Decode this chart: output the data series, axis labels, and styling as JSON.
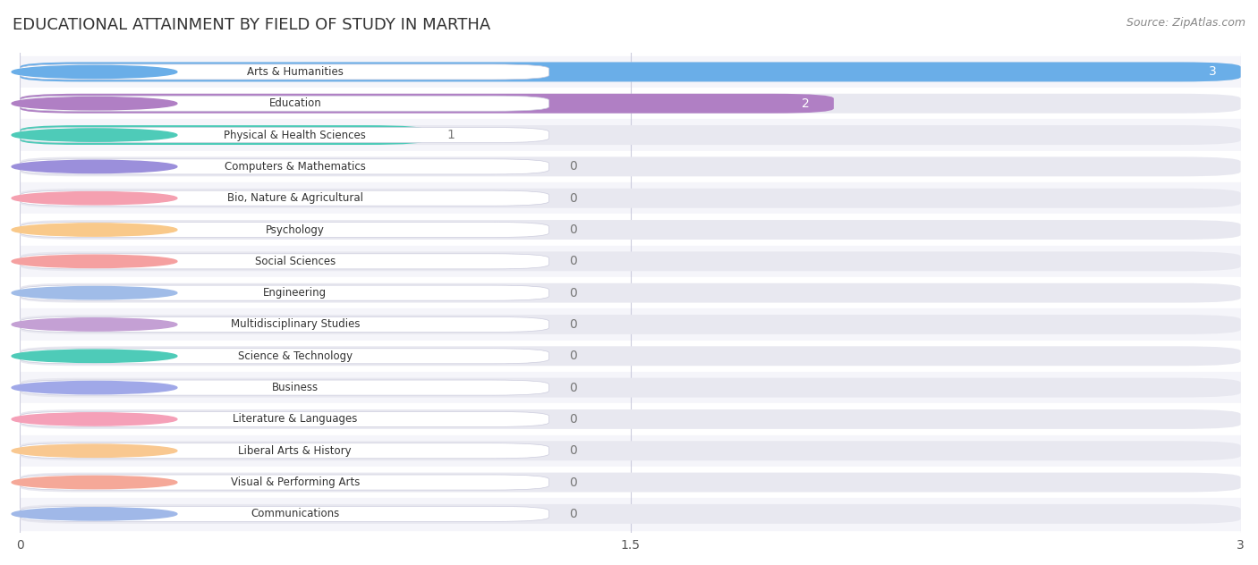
{
  "title": "EDUCATIONAL ATTAINMENT BY FIELD OF STUDY IN MARTHA",
  "source": "Source: ZipAtlas.com",
  "categories": [
    "Arts & Humanities",
    "Education",
    "Physical & Health Sciences",
    "Computers & Mathematics",
    "Bio, Nature & Agricultural",
    "Psychology",
    "Social Sciences",
    "Engineering",
    "Multidisciplinary Studies",
    "Science & Technology",
    "Business",
    "Literature & Languages",
    "Liberal Arts & History",
    "Visual & Performing Arts",
    "Communications"
  ],
  "values": [
    3,
    2,
    1,
    0,
    0,
    0,
    0,
    0,
    0,
    0,
    0,
    0,
    0,
    0,
    0
  ],
  "bar_colors": [
    "#6aaee8",
    "#b07fc4",
    "#4ecbb8",
    "#9b8fdb",
    "#f5a0b0",
    "#f9c98a",
    "#f5a0a0",
    "#a0bce8",
    "#c4a0d4",
    "#4ecbb8",
    "#a0a8e8",
    "#f5a0b8",
    "#f9c890",
    "#f5a898",
    "#a0b8e8"
  ],
  "xlim": [
    0,
    3
  ],
  "xticks": [
    0,
    1.5,
    3
  ],
  "background_color": "#ffffff",
  "title_fontsize": 13,
  "bar_height": 0.62,
  "track_color": "#e8e8f0",
  "row_even_color": "#f5f5fa",
  "row_odd_color": "#ffffff"
}
